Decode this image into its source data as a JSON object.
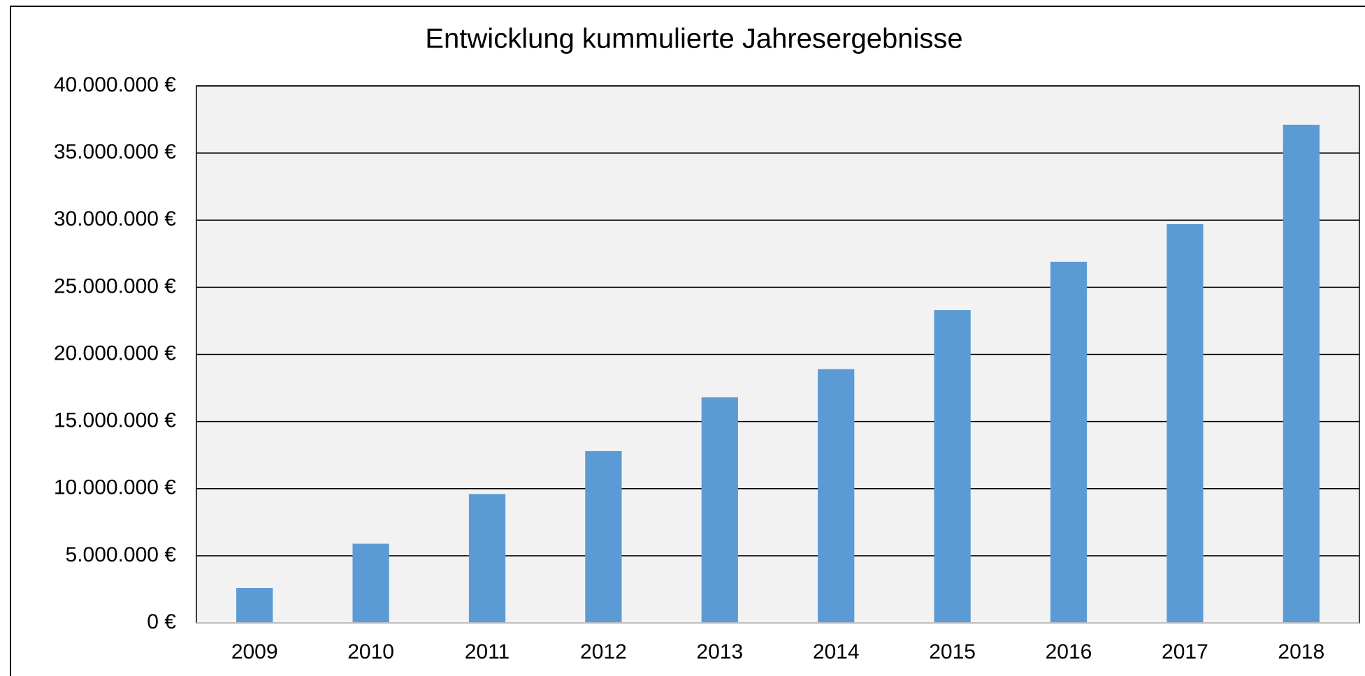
{
  "chart_data": {
    "type": "bar",
    "title": "Entwicklung kummulierte Jahresergebnisse",
    "categories": [
      "2009",
      "2010",
      "2011",
      "2012",
      "2013",
      "2014",
      "2015",
      "2016",
      "2017",
      "2018"
    ],
    "values": [
      2600000,
      5900000,
      9600000,
      12800000,
      16800000,
      18900000,
      23300000,
      26900000,
      29700000,
      37100000
    ],
    "color": "#5b9bd5",
    "ylim": [
      0,
      40000000
    ],
    "yticks": [
      {
        "value": 0,
        "label": "0 €"
      },
      {
        "value": 5000000,
        "label": "5.000.000 €"
      },
      {
        "value": 10000000,
        "label": "10.000.000 €"
      },
      {
        "value": 15000000,
        "label": "15.000.000 €"
      },
      {
        "value": 20000000,
        "label": "20.000.000 €"
      },
      {
        "value": 25000000,
        "label": "25.000.000 €"
      },
      {
        "value": 30000000,
        "label": "30.000.000 €"
      },
      {
        "value": 35000000,
        "label": "35.000.000 €"
      },
      {
        "value": 40000000,
        "label": "40.000.000 €"
      }
    ],
    "grid": true
  }
}
